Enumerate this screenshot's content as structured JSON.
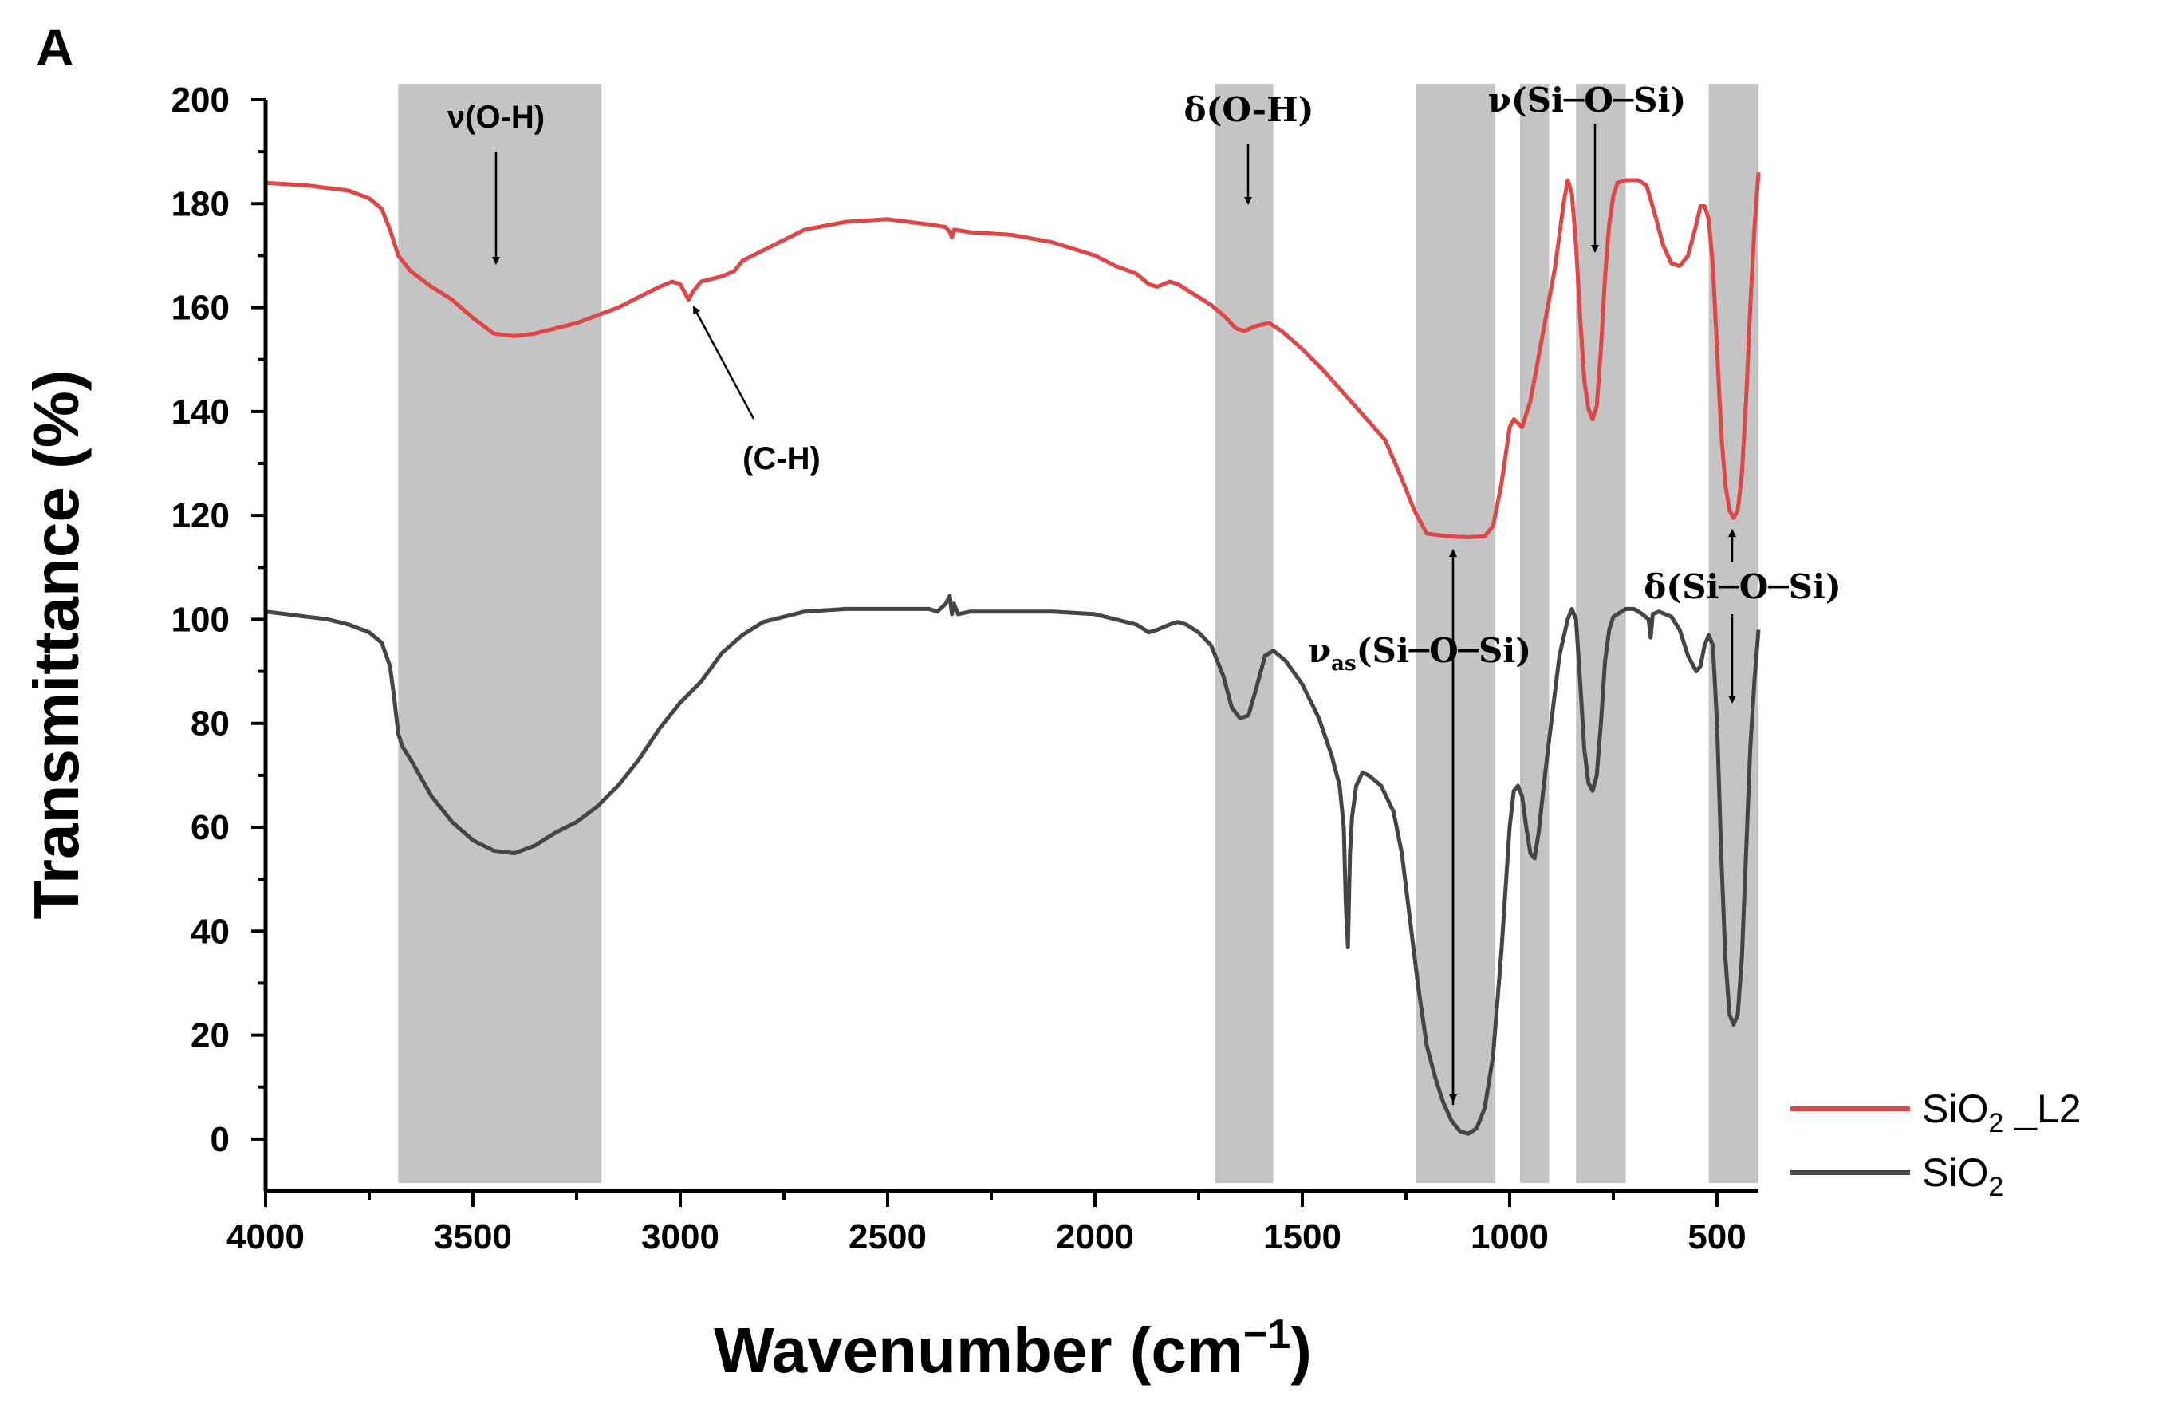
{
  "panel_label": "A",
  "colors": {
    "sio2_l2": "#e04646",
    "sio2": "#454545",
    "band": "#c4c4c4",
    "axis": "#000000"
  },
  "chart_data": {
    "type": "line",
    "title": "",
    "xlabel": "Wavenumber (cm⁻¹)",
    "xlabel_parts": [
      "Wavenumber (cm",
      "−1",
      ")"
    ],
    "ylabel": "Transmittance (%)",
    "xlim": [
      4000,
      400
    ],
    "ylim": [
      -10,
      200
    ],
    "x_ticks": [
      4000,
      3500,
      3000,
      2500,
      2000,
      1500,
      1000,
      500
    ],
    "y_ticks": [
      0,
      20,
      40,
      60,
      80,
      100,
      120,
      140,
      160,
      180,
      200
    ],
    "grid": false,
    "legend_position": "right-bottom",
    "shaded_bands": [
      [
        3680,
        3190
      ],
      [
        1710,
        1570
      ],
      [
        1225,
        1035
      ],
      [
        975,
        905
      ],
      [
        840,
        720
      ],
      [
        520,
        400
      ]
    ],
    "series": [
      {
        "name": "SiO2_L2",
        "legend_parts": [
          "SiO",
          "2",
          " _L2"
        ],
        "color_key": "sio2_l2",
        "points": [
          [
            4000,
            184
          ],
          [
            3900,
            183.5
          ],
          [
            3800,
            182.5
          ],
          [
            3750,
            181
          ],
          [
            3720,
            179
          ],
          [
            3700,
            175
          ],
          [
            3680,
            170
          ],
          [
            3650,
            167
          ],
          [
            3600,
            164
          ],
          [
            3550,
            161.5
          ],
          [
            3500,
            158
          ],
          [
            3450,
            155
          ],
          [
            3400,
            154.5
          ],
          [
            3350,
            155
          ],
          [
            3300,
            156
          ],
          [
            3250,
            157
          ],
          [
            3200,
            158.5
          ],
          [
            3150,
            160
          ],
          [
            3100,
            162
          ],
          [
            3050,
            164
          ],
          [
            3020,
            165
          ],
          [
            3000,
            164.5
          ],
          [
            2990,
            163
          ],
          [
            2980,
            161.5
          ],
          [
            2970,
            163
          ],
          [
            2950,
            165
          ],
          [
            2900,
            166
          ],
          [
            2870,
            167
          ],
          [
            2850,
            169
          ],
          [
            2800,
            171
          ],
          [
            2700,
            175
          ],
          [
            2600,
            176.5
          ],
          [
            2500,
            177
          ],
          [
            2450,
            176.5
          ],
          [
            2400,
            176
          ],
          [
            2360,
            175.5
          ],
          [
            2350,
            174.5
          ],
          [
            2345,
            173.5
          ],
          [
            2340,
            175
          ],
          [
            2300,
            174.5
          ],
          [
            2200,
            174
          ],
          [
            2100,
            172.5
          ],
          [
            2000,
            170
          ],
          [
            1950,
            168
          ],
          [
            1900,
            166.5
          ],
          [
            1870,
            164.5
          ],
          [
            1850,
            164
          ],
          [
            1820,
            165
          ],
          [
            1800,
            164.5
          ],
          [
            1760,
            162.5
          ],
          [
            1720,
            160.5
          ],
          [
            1690,
            158.5
          ],
          [
            1660,
            156
          ],
          [
            1640,
            155.5
          ],
          [
            1610,
            156.5
          ],
          [
            1580,
            157
          ],
          [
            1550,
            155.5
          ],
          [
            1500,
            152
          ],
          [
            1450,
            148
          ],
          [
            1400,
            143.5
          ],
          [
            1350,
            139
          ],
          [
            1300,
            134.5
          ],
          [
            1260,
            127
          ],
          [
            1230,
            121
          ],
          [
            1200,
            116.5
          ],
          [
            1150,
            116
          ],
          [
            1100,
            115.8
          ],
          [
            1060,
            116
          ],
          [
            1040,
            118
          ],
          [
            1020,
            126
          ],
          [
            1000,
            137
          ],
          [
            990,
            138.5
          ],
          [
            970,
            137
          ],
          [
            950,
            142
          ],
          [
            920,
            155
          ],
          [
            890,
            168
          ],
          [
            870,
            180
          ],
          [
            860,
            184.5
          ],
          [
            850,
            182
          ],
          [
            840,
            172
          ],
          [
            830,
            158
          ],
          [
            820,
            146
          ],
          [
            810,
            140.5
          ],
          [
            800,
            138.5
          ],
          [
            790,
            141
          ],
          [
            780,
            152
          ],
          [
            770,
            166
          ],
          [
            760,
            176
          ],
          [
            750,
            181.5
          ],
          [
            740,
            184
          ],
          [
            720,
            184.5
          ],
          [
            690,
            184.5
          ],
          [
            670,
            183.5
          ],
          [
            650,
            178
          ],
          [
            630,
            172
          ],
          [
            610,
            168.5
          ],
          [
            590,
            168
          ],
          [
            570,
            170
          ],
          [
            550,
            176
          ],
          [
            540,
            179.5
          ],
          [
            530,
            179.5
          ],
          [
            520,
            177
          ],
          [
            510,
            168
          ],
          [
            500,
            152
          ],
          [
            490,
            136
          ],
          [
            480,
            126
          ],
          [
            470,
            121
          ],
          [
            460,
            119.5
          ],
          [
            450,
            121
          ],
          [
            440,
            128
          ],
          [
            430,
            142
          ],
          [
            420,
            160
          ],
          [
            410,
            175
          ],
          [
            400,
            186
          ]
        ]
      },
      {
        "name": "SiO2",
        "legend_parts": [
          "SiO",
          "2",
          ""
        ],
        "color_key": "sio2",
        "points": [
          [
            4000,
            101.5
          ],
          [
            3950,
            101
          ],
          [
            3900,
            100.5
          ],
          [
            3850,
            100
          ],
          [
            3800,
            99
          ],
          [
            3750,
            97.5
          ],
          [
            3720,
            95.5
          ],
          [
            3700,
            91
          ],
          [
            3690,
            85
          ],
          [
            3680,
            78
          ],
          [
            3670,
            75.5
          ],
          [
            3650,
            73
          ],
          [
            3600,
            66
          ],
          [
            3550,
            61
          ],
          [
            3500,
            57.5
          ],
          [
            3450,
            55.5
          ],
          [
            3400,
            55
          ],
          [
            3350,
            56.5
          ],
          [
            3300,
            59
          ],
          [
            3250,
            61
          ],
          [
            3200,
            64
          ],
          [
            3150,
            68
          ],
          [
            3100,
            73
          ],
          [
            3050,
            79
          ],
          [
            3000,
            84
          ],
          [
            2950,
            88
          ],
          [
            2900,
            93.5
          ],
          [
            2850,
            97
          ],
          [
            2800,
            99.5
          ],
          [
            2700,
            101.5
          ],
          [
            2600,
            102
          ],
          [
            2500,
            102
          ],
          [
            2400,
            102
          ],
          [
            2380,
            101.5
          ],
          [
            2360,
            103
          ],
          [
            2350,
            104.5
          ],
          [
            2345,
            101
          ],
          [
            2340,
            103
          ],
          [
            2330,
            101
          ],
          [
            2300,
            101.5
          ],
          [
            2200,
            101.5
          ],
          [
            2100,
            101.5
          ],
          [
            2000,
            101
          ],
          [
            1950,
            100
          ],
          [
            1900,
            99
          ],
          [
            1870,
            97.5
          ],
          [
            1850,
            98
          ],
          [
            1820,
            99
          ],
          [
            1800,
            99.5
          ],
          [
            1780,
            99
          ],
          [
            1750,
            97.5
          ],
          [
            1720,
            95
          ],
          [
            1690,
            89
          ],
          [
            1670,
            83
          ],
          [
            1650,
            81
          ],
          [
            1630,
            81.5
          ],
          [
            1610,
            87
          ],
          [
            1590,
            93
          ],
          [
            1570,
            94
          ],
          [
            1540,
            92
          ],
          [
            1500,
            87.5
          ],
          [
            1460,
            81
          ],
          [
            1430,
            74
          ],
          [
            1410,
            68
          ],
          [
            1400,
            60
          ],
          [
            1395,
            45
          ],
          [
            1390,
            37
          ],
          [
            1385,
            55
          ],
          [
            1380,
            62
          ],
          [
            1370,
            68
          ],
          [
            1355,
            70.5
          ],
          [
            1340,
            70
          ],
          [
            1310,
            68
          ],
          [
            1280,
            63
          ],
          [
            1260,
            55
          ],
          [
            1240,
            42
          ],
          [
            1220,
            29
          ],
          [
            1200,
            18
          ],
          [
            1180,
            12
          ],
          [
            1160,
            7
          ],
          [
            1140,
            3.5
          ],
          [
            1120,
            1.5
          ],
          [
            1100,
            1
          ],
          [
            1080,
            2
          ],
          [
            1060,
            6
          ],
          [
            1040,
            16
          ],
          [
            1020,
            36
          ],
          [
            1000,
            60
          ],
          [
            990,
            67
          ],
          [
            980,
            68
          ],
          [
            970,
            66
          ],
          [
            960,
            60
          ],
          [
            950,
            55
          ],
          [
            940,
            54
          ],
          [
            930,
            59
          ],
          [
            915,
            70
          ],
          [
            900,
            80
          ],
          [
            880,
            93
          ],
          [
            860,
            100
          ],
          [
            850,
            102
          ],
          [
            840,
            100
          ],
          [
            830,
            88
          ],
          [
            820,
            75
          ],
          [
            810,
            68.5
          ],
          [
            800,
            67
          ],
          [
            790,
            70
          ],
          [
            780,
            80
          ],
          [
            770,
            92
          ],
          [
            760,
            98
          ],
          [
            750,
            100.5
          ],
          [
            740,
            101
          ],
          [
            720,
            102
          ],
          [
            700,
            102
          ],
          [
            680,
            101
          ],
          [
            665,
            100
          ],
          [
            660,
            96.5
          ],
          [
            655,
            101
          ],
          [
            640,
            101.5
          ],
          [
            610,
            100.5
          ],
          [
            590,
            98
          ],
          [
            570,
            93
          ],
          [
            550,
            90
          ],
          [
            540,
            91
          ],
          [
            530,
            95
          ],
          [
            520,
            97
          ],
          [
            510,
            95
          ],
          [
            500,
            80
          ],
          [
            490,
            55
          ],
          [
            480,
            35
          ],
          [
            470,
            24
          ],
          [
            460,
            22
          ],
          [
            450,
            24
          ],
          [
            440,
            35
          ],
          [
            430,
            55
          ],
          [
            420,
            75
          ],
          [
            410,
            88
          ],
          [
            400,
            98
          ]
        ]
      }
    ],
    "annotations": [
      {
        "text": "ν(O-H)",
        "style": "sans"
      },
      {
        "text": "(C-H)",
        "style": "sans"
      },
      {
        "text": "δ(O-H)",
        "style": "serif"
      },
      {
        "text": "ν(Si─O─Si)",
        "style": "serif"
      },
      {
        "text": "δ(Si─O─Si)",
        "style": "serif"
      },
      {
        "text": "ν",
        "style": "serif"
      },
      {
        "text": "as",
        "style": "serif"
      },
      {
        "text": "(Si─O─Si)",
        "style": "serif"
      }
    ]
  }
}
